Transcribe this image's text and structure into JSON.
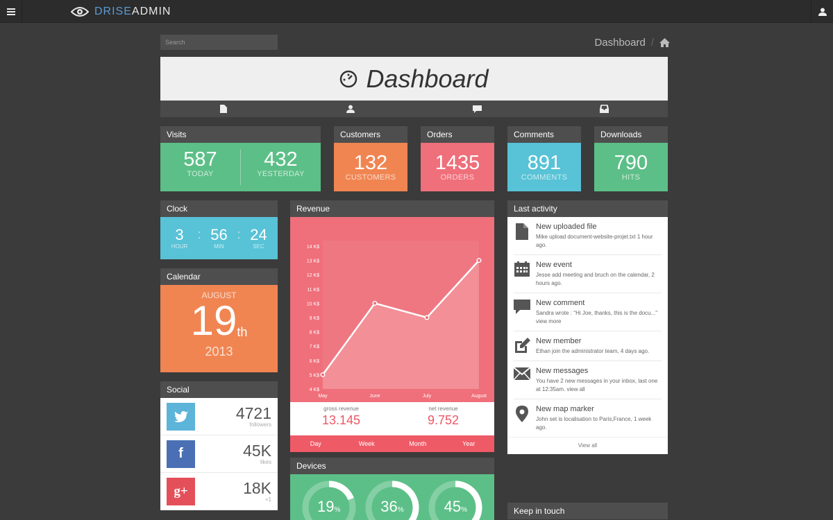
{
  "topbar": {
    "logo_a": "DRISE",
    "logo_b": "ADMIN"
  },
  "search": {
    "placeholder": "Search"
  },
  "breadcrumb": {
    "label": "Dashboard"
  },
  "hero": {
    "title": "Dashboard",
    "tabs": [
      "file-icon",
      "user-icon",
      "comment-icon",
      "inbox-icon"
    ]
  },
  "stats": {
    "visits": {
      "title": "Visits",
      "today": "587",
      "today_label": "TODAY",
      "yesterday": "432",
      "yesterday_label": "YESTERDAY"
    },
    "customers": {
      "title": "Customers",
      "value": "132",
      "label": "CUSTOMERS"
    },
    "orders": {
      "title": "Orders",
      "value": "1435",
      "label": "ORDERS"
    },
    "comments": {
      "title": "Comments",
      "value": "891",
      "label": "COMMENTS"
    },
    "downloads": {
      "title": "Downloads",
      "value": "790",
      "label": "HITS"
    }
  },
  "clock": {
    "title": "Clock",
    "hour": "3",
    "hour_label": "HOUR",
    "min": "56",
    "min_label": "MIN",
    "sec": "24",
    "sec_label": "SEC",
    "sep": ":"
  },
  "calendar": {
    "title": "Calendar",
    "month": "AUGUST",
    "day": "19",
    "suffix": "th",
    "year": "2013"
  },
  "social": {
    "title": "Social",
    "items": [
      {
        "icon": "twitter-icon",
        "value": "4721",
        "label": "followers",
        "color": "#5cb4d9"
      },
      {
        "icon": "facebook-icon",
        "value": "45K",
        "label": "likes",
        "color": "#4a6fb5"
      },
      {
        "icon": "google-plus-icon",
        "value": "18K",
        "label": "+1",
        "color": "#e4505a"
      }
    ]
  },
  "revenue": {
    "title": "Revenue",
    "gross_label": "gross revenue",
    "gross_value": "13.145",
    "net_label": "net revenue",
    "net_value": "9.752",
    "tabs": [
      "Day",
      "Week",
      "Month",
      "Year"
    ]
  },
  "chart_data": {
    "type": "area",
    "categories": [
      "May",
      "June",
      "July",
      "August"
    ],
    "values": [
      5,
      10,
      9,
      13
    ],
    "yticks": [
      "4 K$",
      "5 K$",
      "6 K$",
      "7 K$",
      "8 K$",
      "9 K$",
      "10 K$",
      "11 K$",
      "12 K$",
      "13 K$",
      "14 K$"
    ],
    "ylim": [
      4,
      14
    ],
    "grid": false
  },
  "devices": {
    "title": "Devices",
    "items": [
      {
        "value": "19",
        "pct": 19
      },
      {
        "value": "36",
        "pct": 36
      },
      {
        "value": "45",
        "pct": 45
      }
    ],
    "unit": "%"
  },
  "activity": {
    "title": "Last activity",
    "items": [
      {
        "icon": "file-icon",
        "title": "New uploaded file",
        "desc": "Mike upload document-website-projet.txt 1 hour ago."
      },
      {
        "icon": "calendar-icon",
        "title": "New event",
        "desc": "Jesse add meeting and bruch on the calendar, 2 hours ago."
      },
      {
        "icon": "comment-icon",
        "title": "New comment",
        "desc": "Sandra wrote : \"Hi Joe, thanks, this is the docu...\" view more"
      },
      {
        "icon": "edit-icon",
        "title": "New member",
        "desc": "Ethan join the administrator team, 4 days ago."
      },
      {
        "icon": "envelope-icon",
        "title": "New messages",
        "desc": "You have 2 new messages in your inbox, last one at 12:35am. view all"
      },
      {
        "icon": "map-marker-icon",
        "title": "New map marker",
        "desc": "John set is localisation to Paris,France, 1 week ago."
      }
    ],
    "view_all": "View all"
  },
  "keep_in_touch": {
    "title": "Keep in touch"
  }
}
